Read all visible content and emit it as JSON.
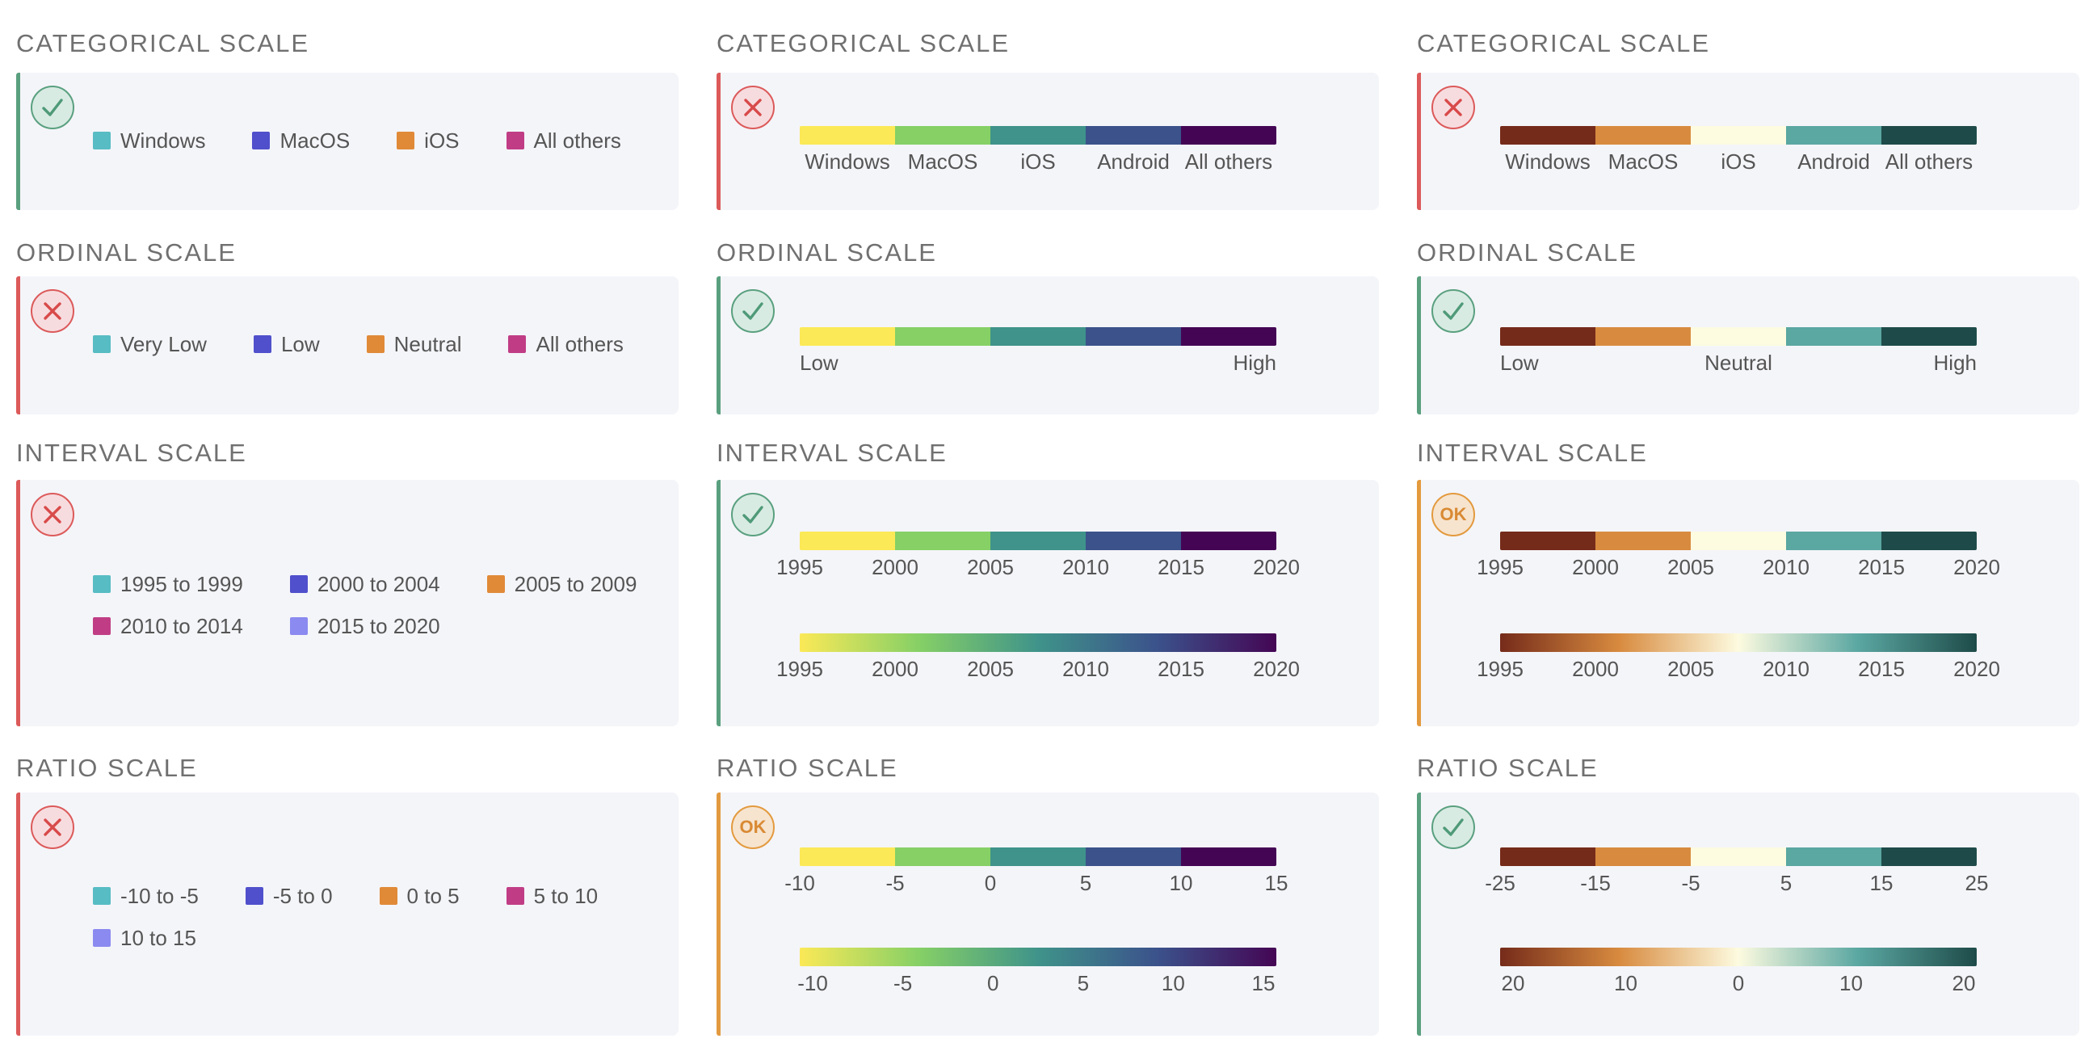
{
  "colors": {
    "good": {
      "border": "#5aa07f",
      "fill": "#d8ebe3",
      "icon": "#4f9a78"
    },
    "bad": {
      "border": "#dc5a5a",
      "fill": "#f7dcdf",
      "icon": "#d84a4a"
    },
    "ok": {
      "border": "#e39a3e",
      "fill": "#f6e4cf",
      "icon": "#d98a34"
    },
    "viridis": [
      "#fbe957",
      "#86d066",
      "#3f938a",
      "#3b528b",
      "#440654"
    ],
    "brbg": [
      "#752b1a",
      "#d88b3f",
      "#fdfbe0",
      "#5ba7a2",
      "#1e4b49"
    ],
    "qual": [
      "#57bcc3",
      "#5050cc",
      "#e08a38",
      "#c03d85",
      "#8b8af0"
    ]
  },
  "icons": {
    "check": "check-icon",
    "cross": "close-icon",
    "ok": "ok-badge"
  },
  "rows": [
    {
      "title": "CATEGORICAL SCALE",
      "cells": [
        {
          "status": "good",
          "badge_text": "",
          "legend": [
            "Windows",
            "MacOS",
            "iOS",
            "All others"
          ]
        },
        {
          "status": "bad",
          "badge_text": "",
          "palette": "viridis",
          "labels": [
            "Windows",
            "MacOS",
            "iOS",
            "Android",
            "All others"
          ]
        },
        {
          "status": "bad",
          "badge_text": "",
          "palette": "brbg",
          "labels": [
            "Windows",
            "MacOS",
            "iOS",
            "Android",
            "All others"
          ]
        }
      ]
    },
    {
      "title": "ORDINAL SCALE",
      "cells": [
        {
          "status": "bad",
          "badge_text": "",
          "legend": [
            "Very Low",
            "Low",
            "Neutral",
            "All others"
          ]
        },
        {
          "status": "good",
          "badge_text": "",
          "palette": "viridis",
          "labels": [
            "Low",
            "High"
          ]
        },
        {
          "status": "good",
          "badge_text": "",
          "palette": "brbg",
          "labels": [
            "Low",
            "Neutral",
            "High"
          ]
        }
      ]
    },
    {
      "title": "INTERVAL SCALE",
      "cells": [
        {
          "status": "bad",
          "badge_text": "",
          "legend": [
            "1995 to 1999",
            "2000 to 2004",
            "2005 to 2009",
            "2010 to 2014",
            "2015 to 2020"
          ]
        },
        {
          "status": "good",
          "badge_text": "",
          "palette": "viridis",
          "ticks": [
            "1995",
            "2000",
            "2005",
            "2010",
            "2015",
            "2020"
          ],
          "gradient_ticks": [
            "1995",
            "2000",
            "2005",
            "2010",
            "2015",
            "2020"
          ]
        },
        {
          "status": "ok",
          "badge_text": "OK",
          "palette": "brbg",
          "ticks": [
            "1995",
            "2000",
            "2005",
            "2010",
            "2015",
            "2020"
          ],
          "gradient_ticks": [
            "1995",
            "2000",
            "2005",
            "2010",
            "2015",
            "2020"
          ]
        }
      ]
    },
    {
      "title": "RATIO SCALE",
      "cells": [
        {
          "status": "bad",
          "badge_text": "",
          "legend": [
            "-10 to -5",
            "-5 to 0",
            "0 to 5",
            "5 to 10",
            "10 to 15"
          ]
        },
        {
          "status": "ok",
          "badge_text": "OK",
          "palette": "viridis",
          "ticks": [
            "-10",
            "-5",
            "0",
            "5",
            "10",
            "15"
          ],
          "gradient_ticks": [
            "-10",
            "-5",
            "0",
            "5",
            "10",
            "15"
          ]
        },
        {
          "status": "good",
          "badge_text": "",
          "palette": "brbg",
          "ticks": [
            "-25",
            "-15",
            "-5",
            "5",
            "15",
            "25"
          ],
          "gradient_ticks": [
            "20",
            "10",
            "0",
            "10",
            "20"
          ]
        }
      ]
    }
  ]
}
